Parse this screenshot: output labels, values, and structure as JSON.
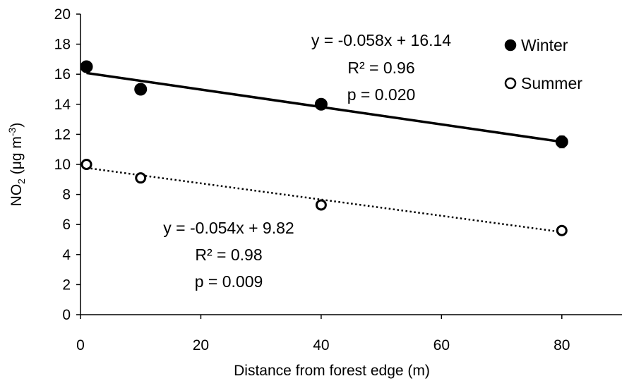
{
  "chart_data": {
    "type": "scatter",
    "xlabel": "Distance from forest edge (m)",
    "ylabel": {
      "prefix": "NO",
      "sub": "2",
      "unit_open": " (μg m",
      "sup": "-3",
      "close": ")"
    },
    "xlim": [
      0,
      90
    ],
    "ylim": [
      0,
      20
    ],
    "x_ticks": [
      0,
      20,
      40,
      60,
      80
    ],
    "y_ticks": [
      0,
      2,
      4,
      6,
      8,
      10,
      12,
      14,
      16,
      18,
      20
    ],
    "grid": false,
    "legend_position": "top-right",
    "series": [
      {
        "name": "Winter",
        "marker": "filled-circle",
        "x": [
          1,
          10,
          40,
          80
        ],
        "y": [
          16.5,
          15.0,
          14.0,
          11.5
        ],
        "error": [
          0.3,
          0.0,
          0.0,
          0.4
        ],
        "trendline": {
          "style": "solid",
          "slope": -0.058,
          "intercept": 16.14,
          "x_range": [
            1,
            80
          ],
          "labels": [
            "y = -0.058x + 16.14",
            "R² = 0.96",
            "p = 0.020"
          ]
        }
      },
      {
        "name": "Summer",
        "marker": "open-circle",
        "x": [
          1,
          10,
          40,
          80
        ],
        "y": [
          10.0,
          9.1,
          7.3,
          5.6
        ],
        "error": [
          0.0,
          0.0,
          0.0,
          0.0
        ],
        "trendline": {
          "style": "dotted",
          "slope": -0.054,
          "intercept": 9.82,
          "x_range": [
            1,
            80
          ],
          "labels": [
            "y = -0.054x + 9.82",
            "R² = 0.98",
            "p = 0.009"
          ]
        }
      }
    ]
  },
  "colors": {
    "marker": "#000000",
    "axis": "#000000",
    "background": "#ffffff",
    "error_bar": "#7f7f7f"
  }
}
